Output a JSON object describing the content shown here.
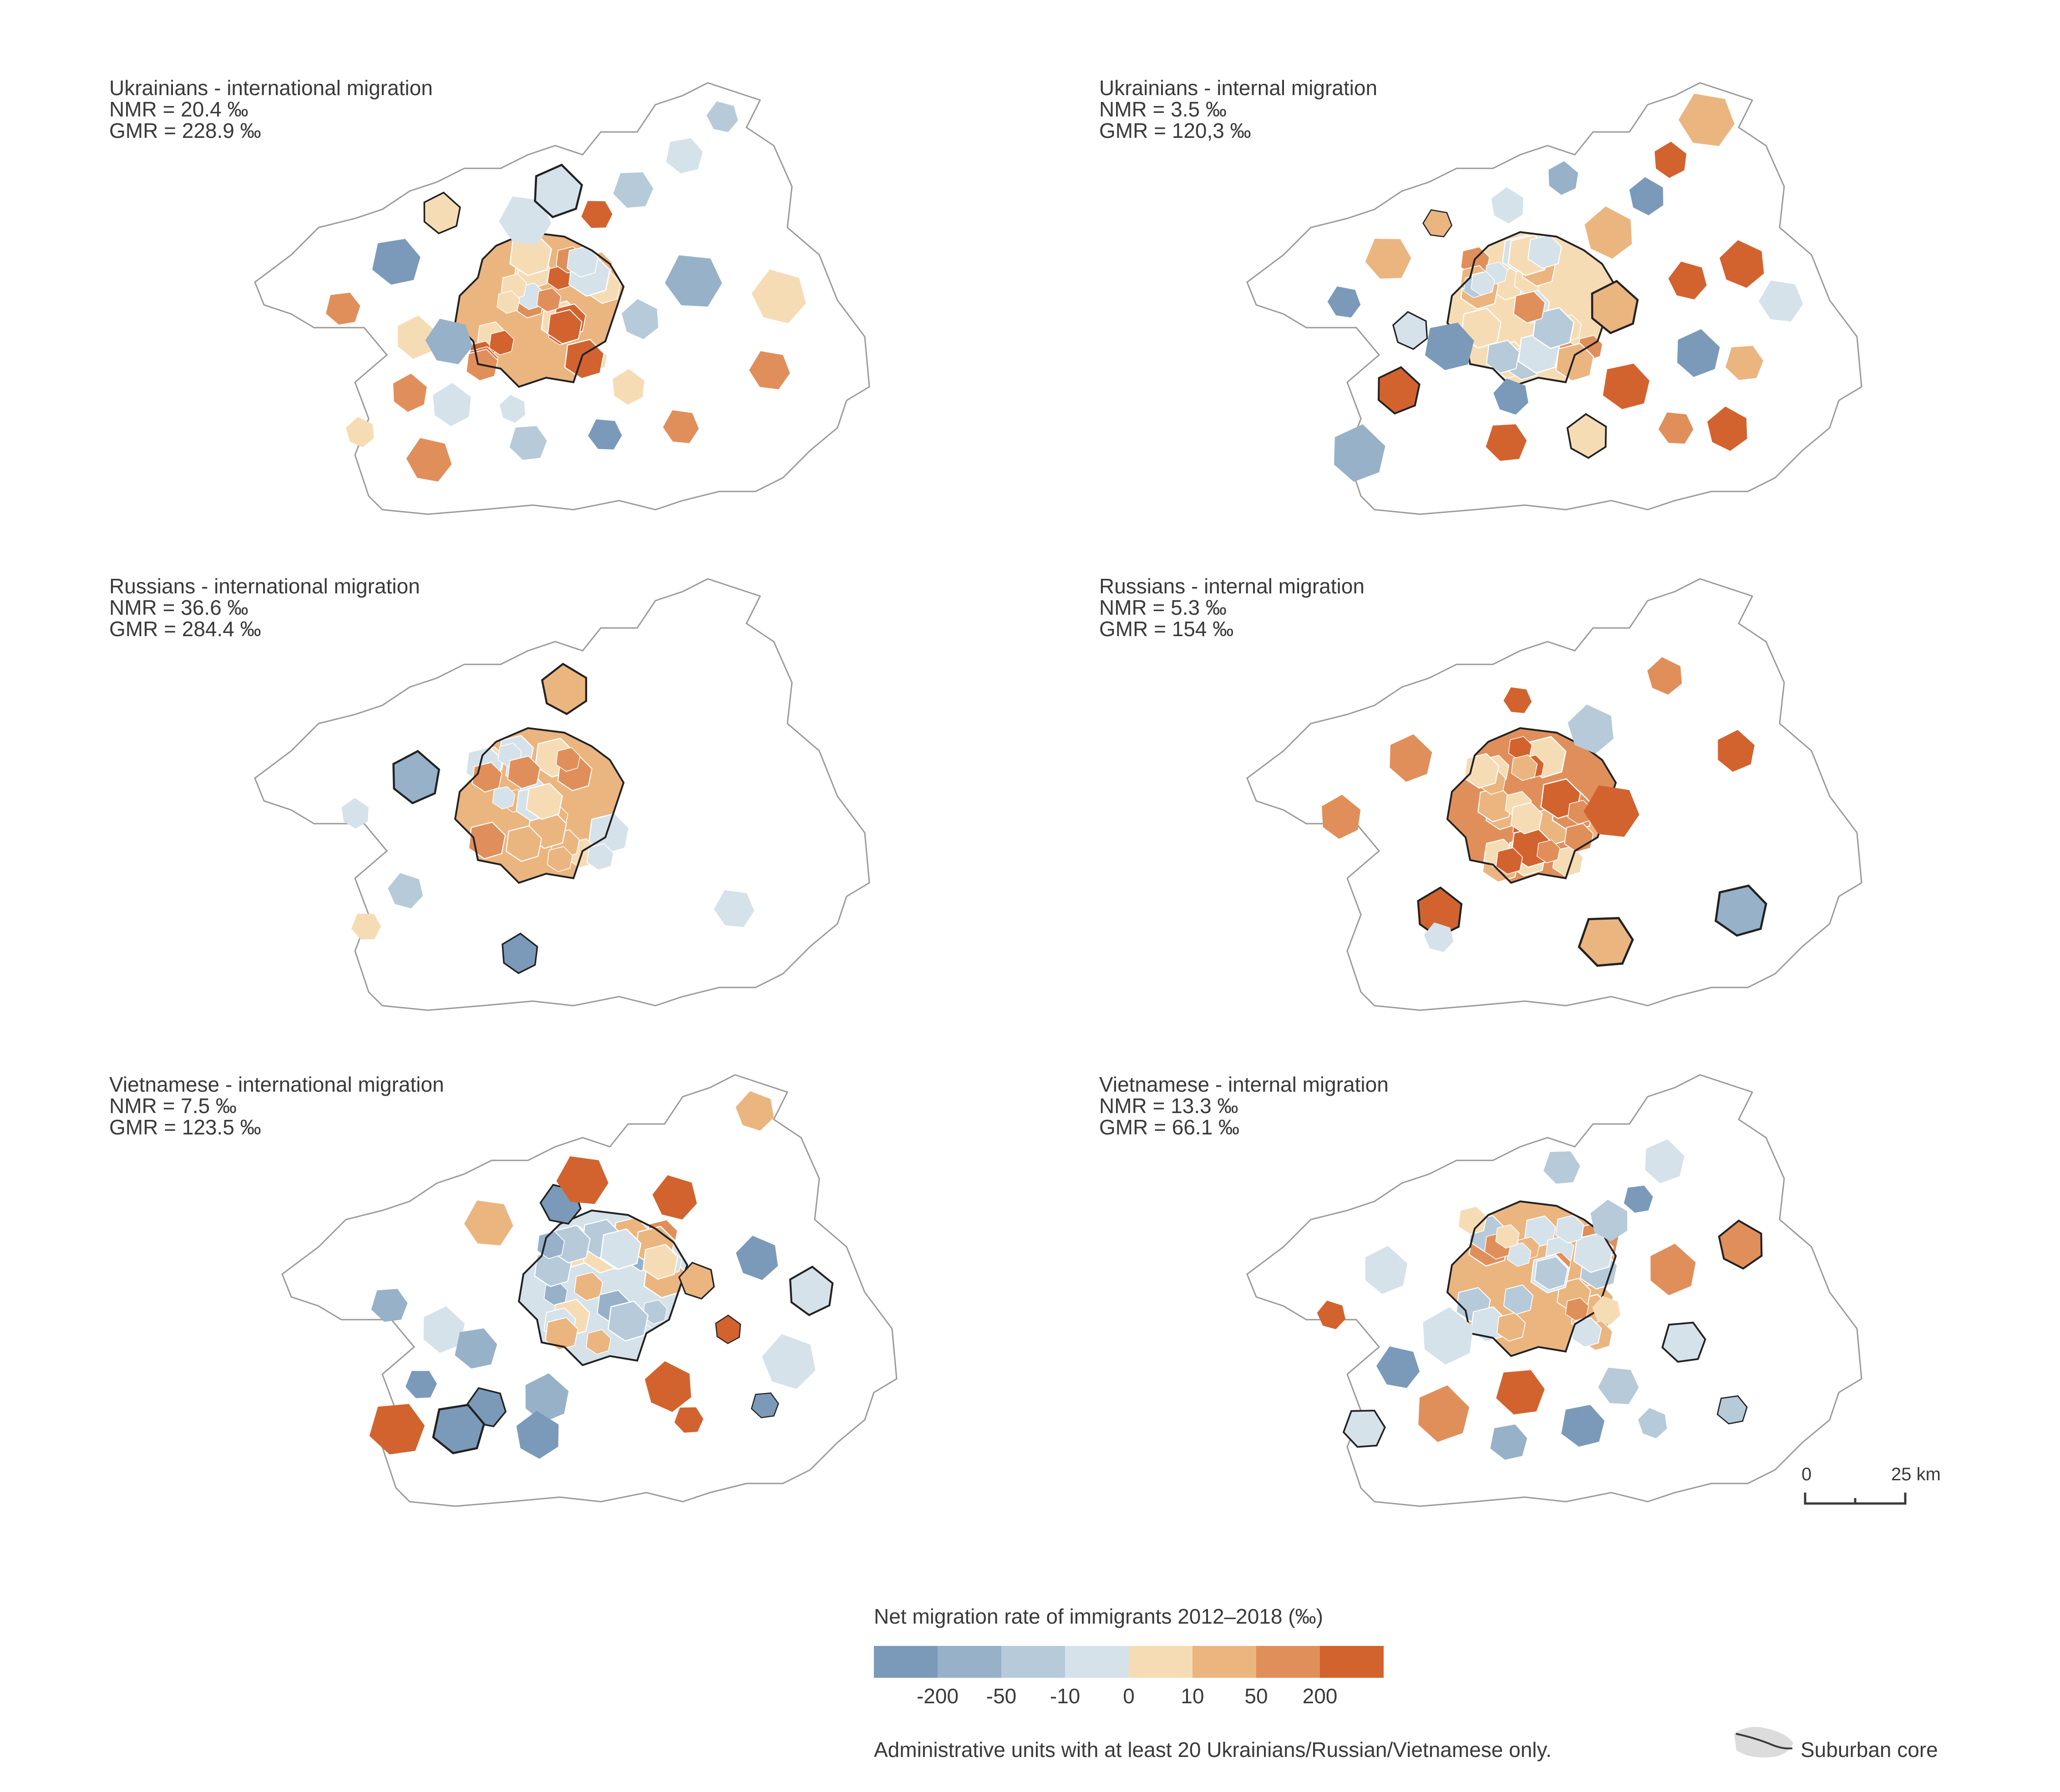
{
  "panels": [
    {
      "id": "ukr-intl",
      "title": "Ukrainians - international migration",
      "nmr": "NMR = 20.4 ‰",
      "gmr": "GMR = 228.9 ‰"
    },
    {
      "id": "ukr-int",
      "title": "Ukrainians - internal migration",
      "nmr": "NMR = 3.5 ‰",
      "gmr": "GMR = 120,3 ‰"
    },
    {
      "id": "rus-intl",
      "title": "Russians - international migration",
      "nmr": "NMR = 36.6 ‰",
      "gmr": "GMR = 284.4 ‰"
    },
    {
      "id": "rus-int",
      "title": "Russians - internal migration",
      "nmr": "NMR = 5.3 ‰",
      "gmr": "GMR = 154 ‰"
    },
    {
      "id": "vie-intl",
      "title": "Vietnamese - international migration",
      "nmr": "NMR = 7.5 ‰",
      "gmr": "GMR = 123.5 ‰"
    },
    {
      "id": "vie-int",
      "title": "Vietnamese - internal migration",
      "nmr": "NMR = 13.3 ‰",
      "gmr": "GMR = 66.1 ‰"
    }
  ],
  "legend": {
    "title": "Net migration rate of immigrants 2012–2018 (‰)",
    "colors": [
      "#7b9ab9",
      "#97b1c9",
      "#b6cad9",
      "#d5e2ea",
      "#f6dcb5",
      "#ebb580",
      "#e08f5b",
      "#d2632f"
    ],
    "labels": [
      "-200",
      "-50",
      "-10",
      "0",
      "10",
      "50",
      "200"
    ],
    "note": "Administrative units with at least 20 Ukrainians/Russian/Vietnamese only.",
    "core_label": "Suburban core"
  },
  "scale": {
    "start_label": "0",
    "end_label": "25 km"
  }
}
